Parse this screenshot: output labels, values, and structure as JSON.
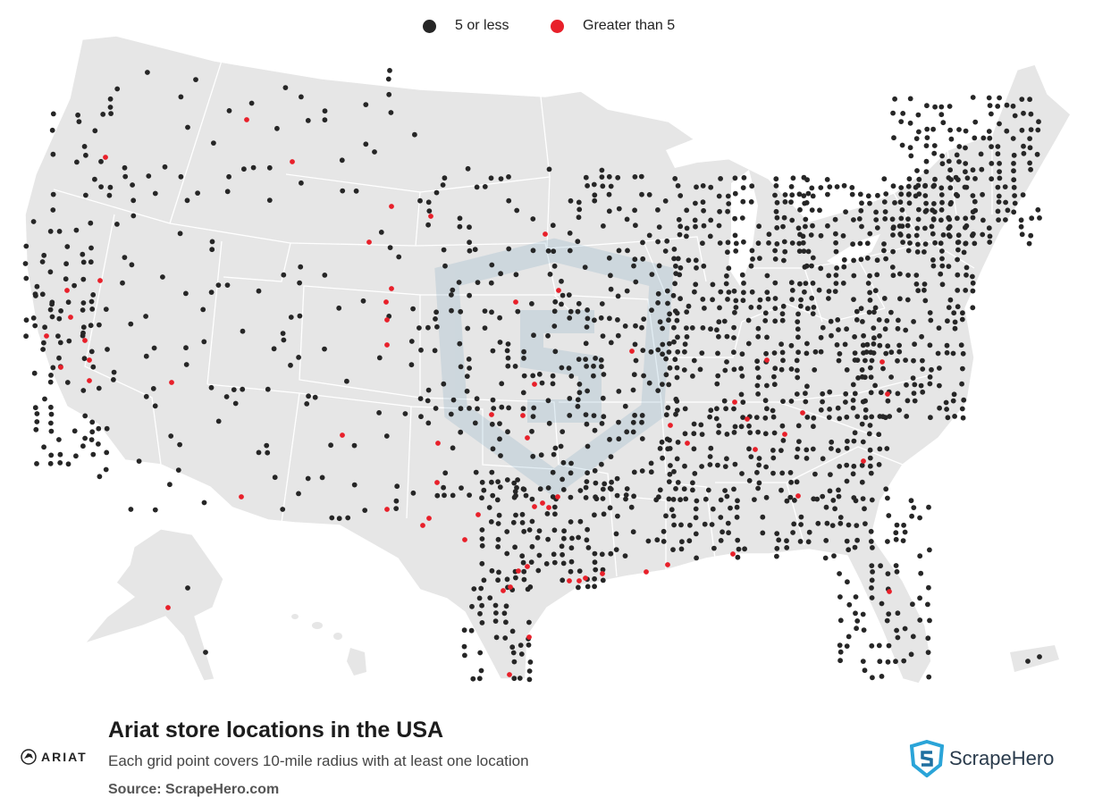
{
  "legend": {
    "items": [
      {
        "label": "5 or less",
        "color": "#262626"
      },
      {
        "label": "Greater than 5",
        "color": "#e8202a"
      }
    ]
  },
  "footer": {
    "title": "Ariat store locations in the USA",
    "subtitle": "Each grid point covers 10-mile radius with at least one location",
    "source": "Source: ScrapeHero.com",
    "brand_left": "ARIAT",
    "brand_right": "ScrapeHero"
  },
  "map": {
    "land_color": "#e6e6e6",
    "border_color": "#ffffff",
    "watermark": "scrapehero-shield-icon"
  }
}
